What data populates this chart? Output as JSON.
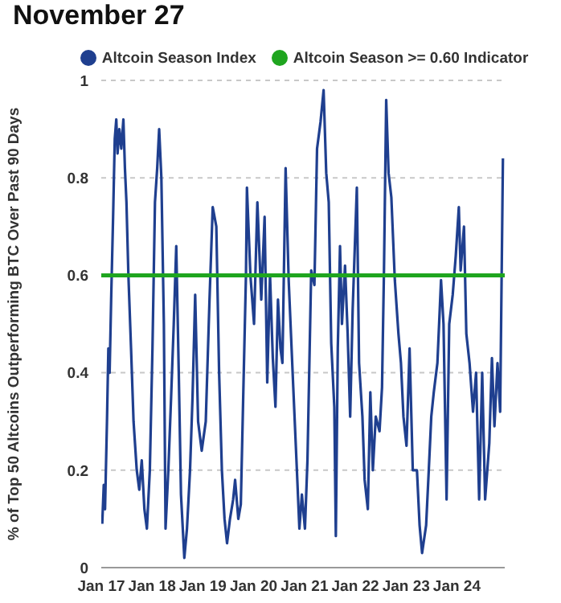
{
  "chart_data": {
    "type": "line",
    "title": "November 27",
    "ylabel": "% of Top 50 Altcoins Outperforming BTC Over Past 90 Days",
    "series": [
      {
        "name": "Altcoin Season Index",
        "color": "#1f3f8f",
        "x": [
          "2017-01-08",
          "2017-01-19",
          "2017-01-28",
          "2017-02-11",
          "2017-02-21",
          "2017-03-02",
          "2017-03-13",
          "2017-03-27",
          "2017-04-08",
          "2017-04-19",
          "2017-04-28",
          "2017-05-11",
          "2017-05-25",
          "2017-06-09",
          "2017-06-20",
          "2017-07-01",
          "2017-07-15",
          "2017-08-03",
          "2017-08-21",
          "2017-09-13",
          "2017-10-01",
          "2017-10-19",
          "2017-11-07",
          "2017-11-25",
          "2017-12-16",
          "2018-01-04",
          "2018-01-22",
          "2018-02-07",
          "2018-02-21",
          "2018-03-09",
          "2018-03-27",
          "2018-04-08",
          "2018-04-28",
          "2018-05-18",
          "2018-06-06",
          "2018-06-24",
          "2018-07-12",
          "2018-07-28",
          "2018-08-21",
          "2018-09-09",
          "2018-10-01",
          "2018-10-19",
          "2018-11-07",
          "2018-11-28",
          "2018-12-24",
          "2019-01-22",
          "2019-02-18",
          "2019-03-13",
          "2019-04-08",
          "2019-04-28",
          "2019-05-18",
          "2019-06-06",
          "2019-06-24",
          "2019-07-15",
          "2019-08-07",
          "2019-08-21",
          "2019-09-13",
          "2019-10-01",
          "2019-10-19",
          "2019-11-07",
          "2019-11-14",
          "2019-12-09",
          "2020-01-04",
          "2020-01-28",
          "2020-02-25",
          "2020-03-20",
          "2020-04-08",
          "2020-04-28",
          "2020-05-18",
          "2020-06-06",
          "2020-06-24",
          "2020-07-12",
          "2020-07-26",
          "2020-08-18",
          "2020-09-09",
          "2020-10-12",
          "2020-11-07",
          "2020-11-25",
          "2020-12-13",
          "2021-01-04",
          "2021-01-22",
          "2021-02-18",
          "2021-03-13",
          "2021-04-01",
          "2021-04-26",
          "2021-05-18",
          "2021-06-06",
          "2021-06-24",
          "2021-07-12",
          "2021-08-03",
          "2021-08-14",
          "2021-08-28",
          "2021-09-13",
          "2021-09-27",
          "2021-10-19",
          "2021-11-07",
          "2021-11-25",
          "2021-12-13",
          "2022-01-12",
          "2022-01-28",
          "2022-02-21",
          "2022-03-09",
          "2022-04-01",
          "2022-04-19",
          "2022-05-07",
          "2022-05-28",
          "2022-06-24",
          "2022-07-12",
          "2022-07-26",
          "2022-08-11",
          "2022-08-28",
          "2022-09-17",
          "2022-10-12",
          "2022-11-07",
          "2022-11-25",
          "2022-12-13",
          "2023-01-04",
          "2023-01-26",
          "2023-02-18",
          "2023-03-20",
          "2023-04-08",
          "2023-04-26",
          "2023-05-25",
          "2023-06-13",
          "2023-07-01",
          "2023-07-19",
          "2023-08-14",
          "2023-09-09",
          "2023-09-27",
          "2023-10-19",
          "2023-11-07",
          "2023-12-02",
          "2023-12-24",
          "2024-01-15",
          "2024-01-28",
          "2024-02-21",
          "2024-03-09",
          "2024-04-01",
          "2024-04-26",
          "2024-05-18",
          "2024-06-09",
          "2024-07-01",
          "2024-07-22",
          "2024-08-21",
          "2024-09-09",
          "2024-09-27",
          "2024-10-19",
          "2024-11-07",
          "2024-11-27"
        ],
        "values": [
          0.09,
          0.17,
          0.12,
          0.3,
          0.45,
          0.4,
          0.55,
          0.72,
          0.88,
          0.92,
          0.85,
          0.9,
          0.86,
          0.92,
          0.82,
          0.75,
          0.6,
          0.45,
          0.3,
          0.2,
          0.16,
          0.22,
          0.12,
          0.08,
          0.2,
          0.45,
          0.75,
          0.82,
          0.9,
          0.8,
          0.5,
          0.08,
          0.2,
          0.35,
          0.5,
          0.66,
          0.4,
          0.15,
          0.02,
          0.08,
          0.2,
          0.35,
          0.56,
          0.3,
          0.24,
          0.3,
          0.55,
          0.74,
          0.7,
          0.4,
          0.2,
          0.1,
          0.05,
          0.1,
          0.14,
          0.18,
          0.1,
          0.13,
          0.36,
          0.6,
          0.78,
          0.6,
          0.5,
          0.75,
          0.55,
          0.72,
          0.38,
          0.6,
          0.43,
          0.33,
          0.55,
          0.45,
          0.42,
          0.82,
          0.59,
          0.37,
          0.2,
          0.08,
          0.15,
          0.08,
          0.22,
          0.61,
          0.58,
          0.86,
          0.915,
          0.98,
          0.81,
          0.75,
          0.46,
          0.33,
          0.065,
          0.45,
          0.66,
          0.5,
          0.62,
          0.48,
          0.31,
          0.53,
          0.78,
          0.42,
          0.31,
          0.18,
          0.12,
          0.36,
          0.2,
          0.31,
          0.28,
          0.37,
          0.61,
          0.96,
          0.81,
          0.76,
          0.59,
          0.48,
          0.42,
          0.31,
          0.25,
          0.45,
          0.2,
          0.2,
          0.087,
          0.03,
          0.087,
          0.2,
          0.31,
          0.36,
          0.42,
          0.59,
          0.5,
          0.14,
          0.5,
          0.56,
          0.64,
          0.74,
          0.61,
          0.7,
          0.48,
          0.42,
          0.32,
          0.4,
          0.14,
          0.4,
          0.14,
          0.255,
          0.43,
          0.29,
          0.42,
          0.32,
          0.84
        ]
      }
    ],
    "xlim": [
      "2017-01-01",
      "2024-12-10"
    ],
    "xticks": [
      {
        "value": "2017-01-01",
        "label": "Jan 17"
      },
      {
        "value": "2018-01-01",
        "label": "Jan 18"
      },
      {
        "value": "2019-01-01",
        "label": "Jan 19"
      },
      {
        "value": "2020-01-01",
        "label": "Jan 20"
      },
      {
        "value": "2021-01-01",
        "label": "Jan 21"
      },
      {
        "value": "2022-01-01",
        "label": "Jan 22"
      },
      {
        "value": "2023-01-01",
        "label": "Jan 23"
      },
      {
        "value": "2024-01-01",
        "label": "Jan 24"
      }
    ],
    "ylim": [
      0,
      1
    ],
    "yticks": [
      0,
      0.2,
      0.4,
      0.6,
      0.8,
      1
    ],
    "ref_lines": [
      {
        "axis": "y",
        "value": 0.6,
        "label": "Altcoin Season >= 0.60 Indicator",
        "color": "#1fa51f"
      }
    ],
    "grid": "y",
    "legend": "top"
  }
}
